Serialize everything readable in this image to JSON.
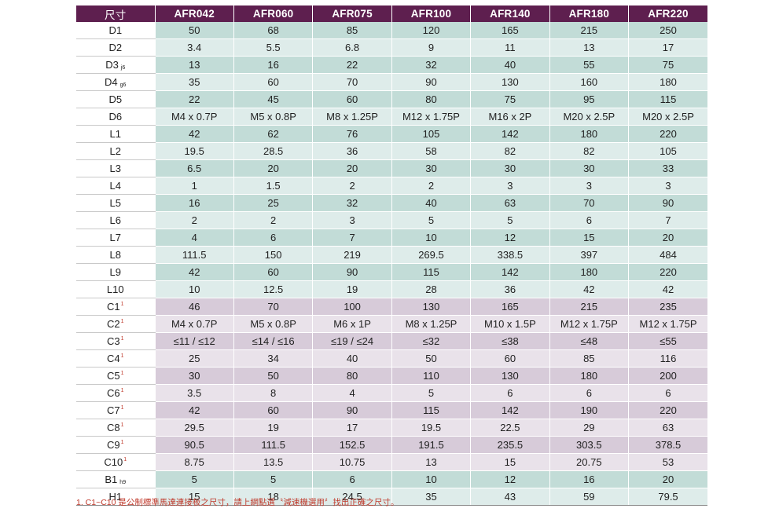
{
  "table": {
    "header_label": "尺寸",
    "models": [
      "AFR042",
      "AFR060",
      "AFR075",
      "AFR100",
      "AFR140",
      "AFR180",
      "AFR220"
    ],
    "rows": [
      {
        "label": "D1",
        "sub": "",
        "sup": "",
        "tone": "teal",
        "values": [
          "50",
          "68",
          "85",
          "120",
          "165",
          "215",
          "250"
        ]
      },
      {
        "label": "D2",
        "sub": "",
        "sup": "",
        "tone": "teal-l",
        "values": [
          "3.4",
          "5.5",
          "6.8",
          "9",
          "11",
          "13",
          "17"
        ]
      },
      {
        "label": "D3",
        "sub": "j6",
        "sup": "",
        "tone": "teal",
        "values": [
          "13",
          "16",
          "22",
          "32",
          "40",
          "55",
          "75"
        ]
      },
      {
        "label": "D4",
        "sub": "g6",
        "sup": "",
        "tone": "teal-l",
        "values": [
          "35",
          "60",
          "70",
          "90",
          "130",
          "160",
          "180"
        ]
      },
      {
        "label": "D5",
        "sub": "",
        "sup": "",
        "tone": "teal",
        "values": [
          "22",
          "45",
          "60",
          "80",
          "75",
          "95",
          "115"
        ]
      },
      {
        "label": "D6",
        "sub": "",
        "sup": "",
        "tone": "teal-l",
        "values": [
          "M4 x 0.7P",
          "M5 x 0.8P",
          "M8 x 1.25P",
          "M12 x 1.75P",
          "M16 x 2P",
          "M20 x 2.5P",
          "M20 x 2.5P"
        ]
      },
      {
        "label": "L1",
        "sub": "",
        "sup": "",
        "tone": "teal",
        "values": [
          "42",
          "62",
          "76",
          "105",
          "142",
          "180",
          "220"
        ]
      },
      {
        "label": "L2",
        "sub": "",
        "sup": "",
        "tone": "teal-l",
        "values": [
          "19.5",
          "28.5",
          "36",
          "58",
          "82",
          "82",
          "105"
        ]
      },
      {
        "label": "L3",
        "sub": "",
        "sup": "",
        "tone": "teal",
        "values": [
          "6.5",
          "20",
          "20",
          "30",
          "30",
          "30",
          "33"
        ]
      },
      {
        "label": "L4",
        "sub": "",
        "sup": "",
        "tone": "teal-l",
        "values": [
          "1",
          "1.5",
          "2",
          "2",
          "3",
          "3",
          "3"
        ]
      },
      {
        "label": "L5",
        "sub": "",
        "sup": "",
        "tone": "teal",
        "values": [
          "16",
          "25",
          "32",
          "40",
          "63",
          "70",
          "90"
        ]
      },
      {
        "label": "L6",
        "sub": "",
        "sup": "",
        "tone": "teal-l",
        "values": [
          "2",
          "2",
          "3",
          "5",
          "5",
          "6",
          "7"
        ]
      },
      {
        "label": "L7",
        "sub": "",
        "sup": "",
        "tone": "teal",
        "values": [
          "4",
          "6",
          "7",
          "10",
          "12",
          "15",
          "20"
        ]
      },
      {
        "label": "L8",
        "sub": "",
        "sup": "",
        "tone": "teal-l",
        "values": [
          "111.5",
          "150",
          "219",
          "269.5",
          "338.5",
          "397",
          "484"
        ]
      },
      {
        "label": "L9",
        "sub": "",
        "sup": "",
        "tone": "teal",
        "values": [
          "42",
          "60",
          "90",
          "115",
          "142",
          "180",
          "220"
        ]
      },
      {
        "label": "L10",
        "sub": "",
        "sup": "",
        "tone": "teal-l",
        "values": [
          "10",
          "12.5",
          "19",
          "28",
          "36",
          "42",
          "42"
        ]
      },
      {
        "label": "C1",
        "sub": "",
        "sup": "1",
        "tone": "purp",
        "values": [
          "46",
          "70",
          "100",
          "130",
          "165",
          "215",
          "235"
        ]
      },
      {
        "label": "C2",
        "sub": "",
        "sup": "1",
        "tone": "purp-l",
        "values": [
          "M4 x 0.7P",
          "M5 x 0.8P",
          "M6 x 1P",
          "M8 x 1.25P",
          "M10 x 1.5P",
          "M12 x 1.75P",
          "M12 x 1.75P"
        ]
      },
      {
        "label": "C3",
        "sub": "",
        "sup": "1",
        "tone": "purp",
        "values": [
          "≤11 / ≤12",
          "≤14 / ≤16",
          "≤19 / ≤24",
          "≤32",
          "≤38",
          "≤48",
          "≤55"
        ]
      },
      {
        "label": "C4",
        "sub": "",
        "sup": "1",
        "tone": "purp-l",
        "values": [
          "25",
          "34",
          "40",
          "50",
          "60",
          "85",
          "116"
        ]
      },
      {
        "label": "C5",
        "sub": "",
        "sup": "1",
        "tone": "purp",
        "values": [
          "30",
          "50",
          "80",
          "110",
          "130",
          "180",
          "200"
        ]
      },
      {
        "label": "C6",
        "sub": "",
        "sup": "1",
        "tone": "purp-l",
        "values": [
          "3.5",
          "8",
          "4",
          "5",
          "6",
          "6",
          "6"
        ]
      },
      {
        "label": "C7",
        "sub": "",
        "sup": "1",
        "tone": "purp",
        "values": [
          "42",
          "60",
          "90",
          "115",
          "142",
          "190",
          "220"
        ]
      },
      {
        "label": "C8",
        "sub": "",
        "sup": "1",
        "tone": "purp-l",
        "values": [
          "29.5",
          "19",
          "17",
          "19.5",
          "22.5",
          "29",
          "63"
        ]
      },
      {
        "label": "C9",
        "sub": "",
        "sup": "1",
        "tone": "purp",
        "values": [
          "90.5",
          "111.5",
          "152.5",
          "191.5",
          "235.5",
          "303.5",
          "378.5"
        ]
      },
      {
        "label": "C10",
        "sub": "",
        "sup": "1",
        "tone": "purp-l",
        "values": [
          "8.75",
          "13.5",
          "10.75",
          "13",
          "15",
          "20.75",
          "53"
        ]
      },
      {
        "label": "B1",
        "sub": "h9",
        "sup": "",
        "tone": "teal",
        "values": [
          "5",
          "5",
          "6",
          "10",
          "12",
          "16",
          "20"
        ]
      },
      {
        "label": "H1",
        "sub": "",
        "sup": "",
        "tone": "teal-l",
        "values": [
          "15",
          "18",
          "24.5",
          "35",
          "43",
          "59",
          "79.5"
        ]
      }
    ]
  },
  "footnote": "1. C1~C10 是公制標準馬達連接板之尺寸，請上網點選〝減速機選用〞找出正確之尺寸。",
  "colors": {
    "header": "#5e1f4f",
    "teal": "#c2dcd7",
    "teal_light": "#deecea",
    "purple": "#d7cbd9",
    "purple_light": "#e9e2ea",
    "footnote": "#c0392b"
  }
}
